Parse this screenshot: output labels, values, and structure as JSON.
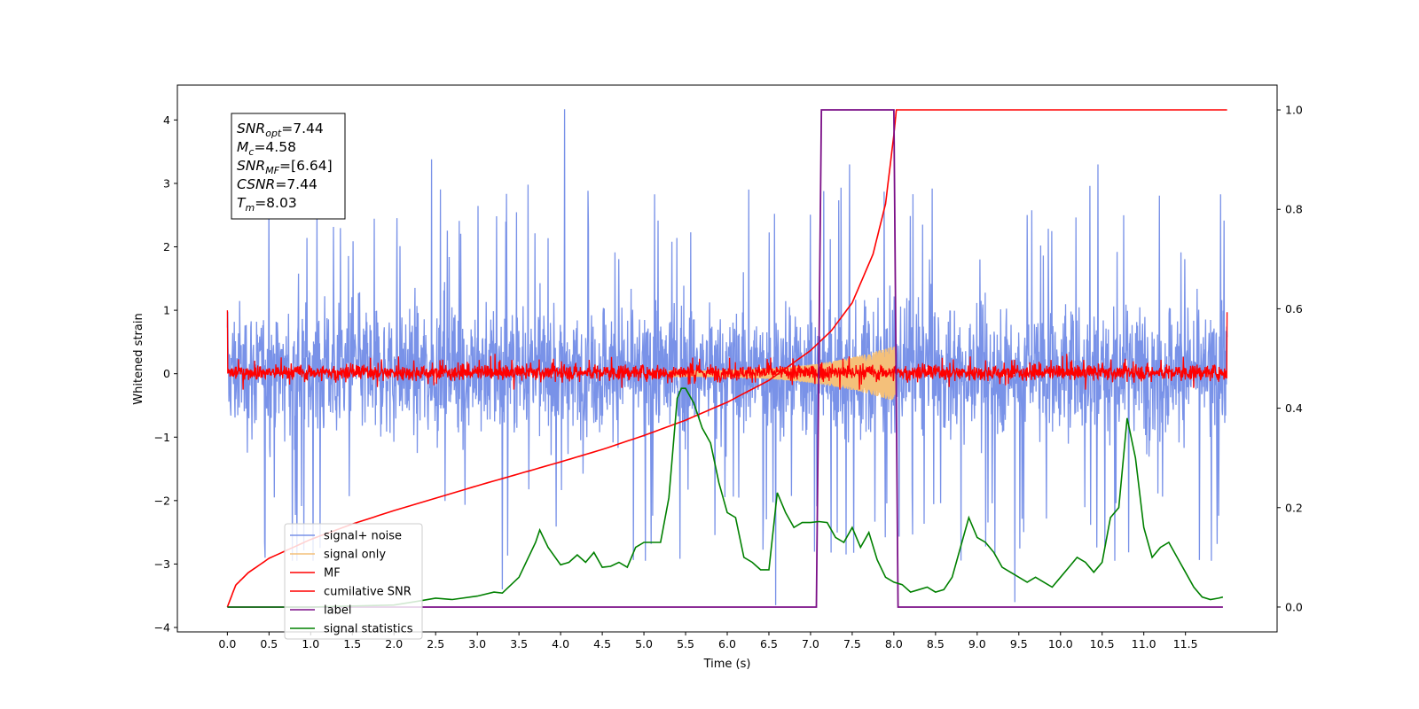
{
  "chart_data": {
    "type": "line",
    "xlabel": "Time (s)",
    "ylabel": "Whitened strain",
    "xlim": [
      -0.6,
      12.6
    ],
    "ylim": [
      -4.07,
      4.55
    ],
    "y2lim": [
      -0.05,
      1.05
    ],
    "x_ticks": [
      0.0,
      0.5,
      1.0,
      1.5,
      2.0,
      2.5,
      3.0,
      3.5,
      4.0,
      4.5,
      5.0,
      5.5,
      6.0,
      6.5,
      7.0,
      7.5,
      8.0,
      8.5,
      9.0,
      9.5,
      10.0,
      10.5,
      11.0,
      11.5
    ],
    "x_tick_labels": [
      "0.0",
      "0.5",
      "1.0",
      "1.5",
      "2.0",
      "2.5",
      "3.0",
      "3.5",
      "4.0",
      "4.5",
      "5.0",
      "5.5",
      "6.0",
      "6.5",
      "7.0",
      "7.5",
      "8.0",
      "8.5",
      "9.0",
      "9.5",
      "10.0",
      "10.5",
      "11.0",
      "11.5"
    ],
    "y_ticks": [
      -4,
      -3,
      -2,
      -1,
      0,
      1,
      2,
      3,
      4
    ],
    "y_tick_labels": [
      "−4",
      "−3",
      "−2",
      "−1",
      "0",
      "1",
      "2",
      "3",
      "4"
    ],
    "y2_ticks": [
      0.0,
      0.2,
      0.4,
      0.6,
      0.8,
      1.0
    ],
    "y2_tick_labels": [
      "0.0",
      "0.2",
      "0.4",
      "0.6",
      "0.8",
      "1.0"
    ],
    "grid": false,
    "legend_position": "lower-left",
    "stats_box": [
      {
        "var": "SNR",
        "sub": "opt",
        "value": "=7.44"
      },
      {
        "var": "M",
        "sub": "c",
        "value": "=4.58"
      },
      {
        "var": "SNR",
        "sub": "MF",
        "value": "=[6.64]"
      },
      {
        "var": "CSNR",
        "sub": "",
        "value": "=7.44"
      },
      {
        "var": "T",
        "sub": "m",
        "value": "=8.03"
      }
    ],
    "series": [
      {
        "name": "signal+ noise",
        "axis": "left",
        "color": "#7992e8",
        "kind": "noise",
        "t_range": [
          0.0,
          12.0
        ],
        "band_approx": [
          -2.3,
          2.3
        ],
        "peaks": [
          [
            4.05,
            4.17
          ],
          [
            2.45,
            3.38
          ],
          [
            6.58,
            -3.65
          ],
          [
            9.45,
            -3.6
          ],
          [
            7.47,
            3.3
          ],
          [
            3.3,
            -3.4
          ],
          [
            10.45,
            3.3
          ],
          [
            0.45,
            -2.9
          ]
        ]
      },
      {
        "name": "signal only",
        "axis": "left",
        "color": "#f4c07a",
        "kind": "chirp",
        "t_range": [
          5.3,
          8.03
        ],
        "amplitude_start": 0.05,
        "amplitude_end": 0.45
      },
      {
        "name": "MF",
        "axis": "left",
        "color": "#ff0000",
        "kind": "noise",
        "t_range": [
          0.0,
          12.0
        ],
        "band_approx": [
          -0.22,
          0.3
        ],
        "edge_values": [
          [
            0.0,
            1.0
          ],
          [
            12.0,
            0.97
          ]
        ]
      },
      {
        "name": "cumilative SNR",
        "axis": "right",
        "color": "#ff0000",
        "x": [
          0.0,
          0.1,
          0.25,
          0.5,
          1.0,
          1.5,
          2.0,
          2.5,
          3.0,
          3.5,
          4.0,
          4.5,
          5.0,
          5.5,
          6.0,
          6.5,
          7.0,
          7.25,
          7.5,
          7.75,
          7.9,
          8.0,
          8.03,
          9.0,
          10.0,
          11.0,
          12.0
        ],
        "y": [
          0.0,
          0.044,
          0.069,
          0.098,
          0.136,
          0.167,
          0.194,
          0.219,
          0.244,
          0.268,
          0.292,
          0.317,
          0.345,
          0.376,
          0.412,
          0.456,
          0.516,
          0.556,
          0.612,
          0.71,
          0.811,
          0.95,
          1.0,
          1.0,
          1.0,
          1.0,
          1.0
        ]
      },
      {
        "name": "label",
        "axis": "right",
        "color": "#7b0f87",
        "x": [
          0.0,
          7.07,
          7.13,
          8.0,
          8.05,
          11.95
        ],
        "y": [
          0.0,
          0.0,
          1.0,
          1.0,
          0.0,
          0.0
        ]
      },
      {
        "name": "signal statistics",
        "axis": "right",
        "color": "#008000",
        "x": [
          0.0,
          0.5,
          1.0,
          1.5,
          2.0,
          2.3,
          2.5,
          2.7,
          3.0,
          3.2,
          3.3,
          3.5,
          3.7,
          3.75,
          3.85,
          4.0,
          4.1,
          4.2,
          4.3,
          4.4,
          4.5,
          4.6,
          4.7,
          4.8,
          4.9,
          5.0,
          5.1,
          5.2,
          5.3,
          5.4,
          5.45,
          5.5,
          5.6,
          5.7,
          5.8,
          5.9,
          6.0,
          6.1,
          6.2,
          6.3,
          6.4,
          6.5,
          6.6,
          6.7,
          6.8,
          6.9,
          7.0,
          7.1,
          7.2,
          7.3,
          7.4,
          7.5,
          7.6,
          7.7,
          7.8,
          7.9,
          8.0,
          8.1,
          8.2,
          8.3,
          8.4,
          8.5,
          8.6,
          8.7,
          8.8,
          8.9,
          9.0,
          9.1,
          9.2,
          9.3,
          9.4,
          9.5,
          9.6,
          9.7,
          9.8,
          9.9,
          10.0,
          10.1,
          10.2,
          10.3,
          10.4,
          10.5,
          10.6,
          10.7,
          10.8,
          10.9,
          11.0,
          11.1,
          11.2,
          11.3,
          11.4,
          11.5,
          11.6,
          11.7,
          11.8,
          11.9,
          11.95
        ],
        "y": [
          0.0,
          0.0,
          0.0,
          0.002,
          0.004,
          0.012,
          0.018,
          0.015,
          0.022,
          0.03,
          0.028,
          0.06,
          0.13,
          0.155,
          0.12,
          0.085,
          0.09,
          0.105,
          0.09,
          0.11,
          0.08,
          0.082,
          0.09,
          0.08,
          0.12,
          0.13,
          0.13,
          0.13,
          0.22,
          0.42,
          0.44,
          0.44,
          0.41,
          0.36,
          0.33,
          0.25,
          0.19,
          0.18,
          0.1,
          0.09,
          0.075,
          0.075,
          0.23,
          0.19,
          0.16,
          0.17,
          0.17,
          0.172,
          0.17,
          0.14,
          0.13,
          0.16,
          0.12,
          0.15,
          0.095,
          0.06,
          0.05,
          0.045,
          0.03,
          0.035,
          0.04,
          0.03,
          0.035,
          0.06,
          0.12,
          0.18,
          0.14,
          0.13,
          0.11,
          0.08,
          0.07,
          0.06,
          0.05,
          0.06,
          0.05,
          0.04,
          0.06,
          0.08,
          0.1,
          0.09,
          0.07,
          0.09,
          0.18,
          0.2,
          0.38,
          0.3,
          0.16,
          0.1,
          0.12,
          0.13,
          0.1,
          0.07,
          0.04,
          0.02,
          0.015,
          0.018,
          0.02
        ]
      }
    ]
  }
}
